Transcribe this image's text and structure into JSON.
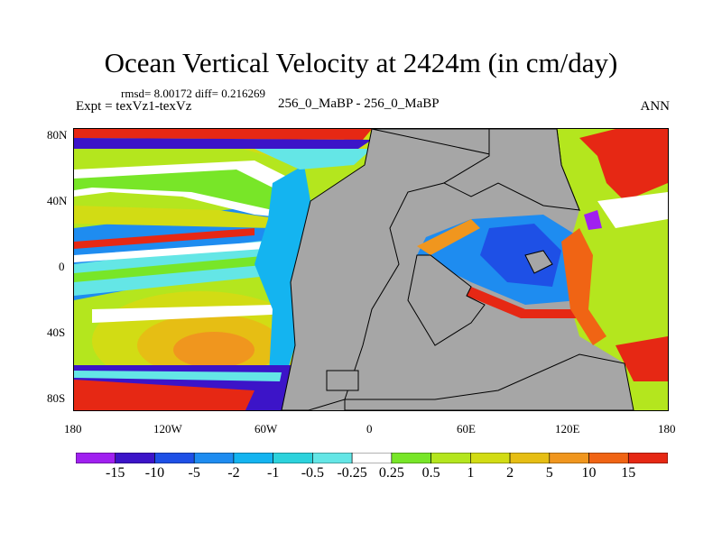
{
  "header": {
    "title": "Ocean Vertical Velocity at 2424m (in cm/day)",
    "stats": "rmsd= 8.00172 diff= 0.216269",
    "expt": "Expt = texVz1-texVz",
    "case": "256_0_MaBP - 256_0_MaBP",
    "season": "ANN"
  },
  "axes": {
    "x_ticks": [
      "180",
      "120W",
      "60W",
      "0",
      "60E",
      "120E",
      "180"
    ],
    "y_ticks": [
      "80N",
      "40N",
      "0",
      "40S",
      "80S"
    ]
  },
  "colorbar": {
    "labels": [
      "-15",
      "-10",
      "-5",
      "-2",
      "-1",
      "-0.5",
      "-0.25",
      "0.25",
      "0.5",
      "1",
      "2",
      "5",
      "10",
      "15"
    ],
    "colors": [
      "#a020f0",
      "#3c14c8",
      "#1e50e6",
      "#1e8cf0",
      "#14b4f0",
      "#2cd2dc",
      "#64e6e6",
      "#ffffff",
      "#78e628",
      "#b4e61e",
      "#d2dc14",
      "#e6be14",
      "#f0961e",
      "#f06414",
      "#e62814"
    ],
    "land_color": "#a6a6a6"
  }
}
